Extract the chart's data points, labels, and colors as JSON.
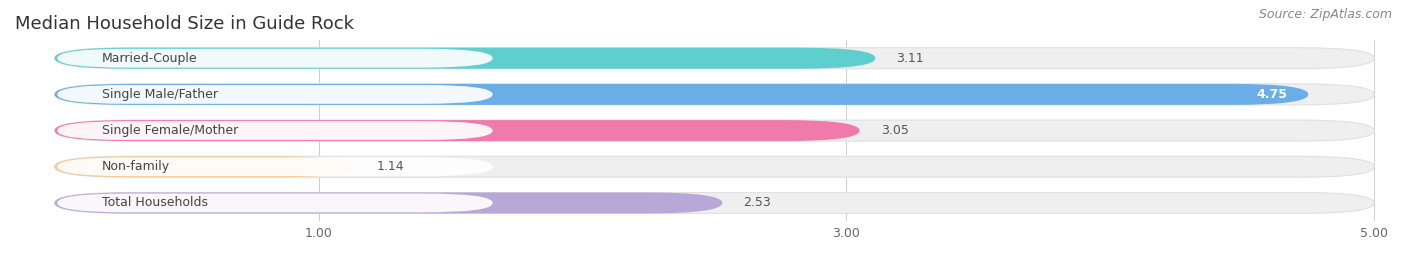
{
  "title": "Median Household Size in Guide Rock",
  "source": "Source: ZipAtlas.com",
  "categories": [
    "Married-Couple",
    "Single Male/Father",
    "Single Female/Mother",
    "Non-family",
    "Total Households"
  ],
  "values": [
    3.11,
    4.75,
    3.05,
    1.14,
    2.53
  ],
  "bar_colors": [
    "#5ecece",
    "#6aaee8",
    "#f07aaa",
    "#f5c990",
    "#b8a8d8"
  ],
  "value_inside": [
    false,
    true,
    false,
    false,
    false
  ],
  "xlim_min": 0.0,
  "xlim_max": 5.0,
  "xticks": [
    1.0,
    3.0,
    5.0
  ],
  "xtick_labels": [
    "1.00",
    "3.00",
    "5.00"
  ],
  "bg_color": "#ffffff",
  "bar_bg_color": "#efefef",
  "bar_bg_border": "#e0e0e0",
  "title_fontsize": 13,
  "label_fontsize": 9,
  "value_fontsize": 9,
  "source_fontsize": 9
}
